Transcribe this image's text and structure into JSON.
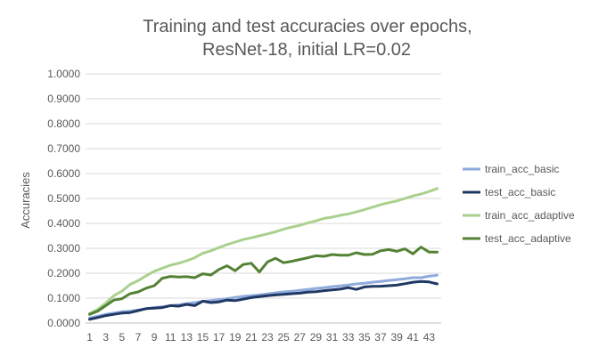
{
  "chart_data": {
    "type": "line",
    "title_lines": [
      "Training and test accuracies over epochs,",
      "ResNet-18, initial LR=0.02"
    ],
    "ylabel": "Accuracies",
    "xlabel": "",
    "ylim": [
      0,
      1
    ],
    "ytick_labels": [
      "0.0000",
      "0.1000",
      "0.2000",
      "0.3000",
      "0.4000",
      "0.5000",
      "0.6000",
      "0.7000",
      "0.8000",
      "0.9000",
      "1.0000"
    ],
    "x": [
      1,
      2,
      3,
      4,
      5,
      6,
      7,
      8,
      9,
      10,
      11,
      12,
      13,
      14,
      15,
      16,
      17,
      18,
      19,
      20,
      21,
      22,
      23,
      24,
      25,
      26,
      27,
      28,
      29,
      30,
      31,
      32,
      33,
      34,
      35,
      36,
      37,
      38,
      39,
      40,
      41,
      42,
      43,
      44
    ],
    "xtick_labels": [
      "1",
      "3",
      "5",
      "7",
      "9",
      "11",
      "13",
      "15",
      "17",
      "19",
      "21",
      "23",
      "25",
      "27",
      "29",
      "31",
      "33",
      "35",
      "37",
      "39",
      "41",
      "43"
    ],
    "grid": true,
    "legend_position": "right",
    "series": [
      {
        "name": "train_acc_basic",
        "color": "#8faadc",
        "values": [
          0.02,
          0.027,
          0.035,
          0.04,
          0.045,
          0.048,
          0.052,
          0.058,
          0.062,
          0.065,
          0.07,
          0.073,
          0.078,
          0.082,
          0.087,
          0.09,
          0.094,
          0.098,
          0.103,
          0.107,
          0.11,
          0.113,
          0.117,
          0.121,
          0.125,
          0.128,
          0.131,
          0.135,
          0.139,
          0.142,
          0.146,
          0.149,
          0.153,
          0.157,
          0.16,
          0.164,
          0.167,
          0.171,
          0.174,
          0.178,
          0.182,
          0.182,
          0.188,
          0.192
        ]
      },
      {
        "name": "test_acc_basic",
        "color": "#203864",
        "values": [
          0.015,
          0.022,
          0.03,
          0.035,
          0.04,
          0.042,
          0.05,
          0.058,
          0.06,
          0.062,
          0.07,
          0.068,
          0.075,
          0.07,
          0.088,
          0.082,
          0.085,
          0.092,
          0.09,
          0.096,
          0.102,
          0.106,
          0.11,
          0.113,
          0.115,
          0.118,
          0.12,
          0.124,
          0.126,
          0.13,
          0.133,
          0.136,
          0.142,
          0.135,
          0.145,
          0.147,
          0.148,
          0.15,
          0.152,
          0.158,
          0.164,
          0.167,
          0.165,
          0.157
        ]
      },
      {
        "name": "train_acc_adaptive",
        "color": "#a9d18e",
        "values": [
          0.038,
          0.055,
          0.08,
          0.11,
          0.128,
          0.155,
          0.17,
          0.19,
          0.208,
          0.22,
          0.232,
          0.24,
          0.25,
          0.262,
          0.28,
          0.29,
          0.303,
          0.315,
          0.325,
          0.335,
          0.342,
          0.35,
          0.358,
          0.366,
          0.377,
          0.385,
          0.392,
          0.402,
          0.41,
          0.42,
          0.425,
          0.432,
          0.438,
          0.446,
          0.455,
          0.465,
          0.475,
          0.483,
          0.49,
          0.5,
          0.51,
          0.518,
          0.528,
          0.54
        ]
      },
      {
        "name": "test_acc_adaptive",
        "color": "#548235",
        "values": [
          0.035,
          0.048,
          0.07,
          0.092,
          0.098,
          0.118,
          0.125,
          0.14,
          0.15,
          0.18,
          0.187,
          0.185,
          0.186,
          0.182,
          0.198,
          0.193,
          0.215,
          0.23,
          0.21,
          0.235,
          0.24,
          0.205,
          0.245,
          0.26,
          0.242,
          0.248,
          0.255,
          0.262,
          0.27,
          0.268,
          0.275,
          0.272,
          0.272,
          0.282,
          0.275,
          0.276,
          0.29,
          0.295,
          0.288,
          0.298,
          0.278,
          0.305,
          0.285,
          0.285
        ]
      }
    ]
  }
}
